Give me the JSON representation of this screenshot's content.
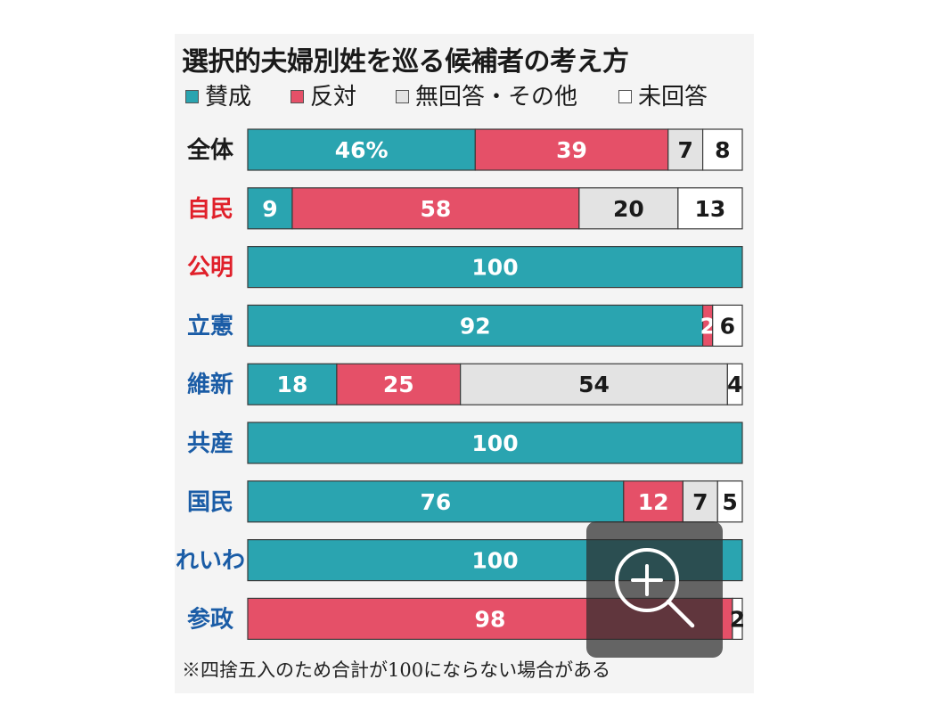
{
  "chart_data": {
    "type": "bar",
    "orientation": "horizontal",
    "stacked": true,
    "title": "選択的夫婦別姓を巡る候補者の考え方",
    "unit": "%",
    "xlim": [
      0,
      100
    ],
    "grid": false,
    "legend_position": "top",
    "categories": [
      "全体",
      "自民",
      "公明",
      "立憲",
      "維新",
      "共産",
      "国民",
      "れいわ",
      "参政"
    ],
    "category_colors": [
      "#1a1a1a",
      "#e0202a",
      "#e0202a",
      "#1a5ca6",
      "#1a5ca6",
      "#1a5ca6",
      "#1a5ca6",
      "#1a5ca6",
      "#1a5ca6"
    ],
    "value_labels": [
      [
        "46%",
        "39",
        "7",
        "8"
      ],
      [
        "9",
        "58",
        "20",
        "13"
      ],
      [
        "100",
        "",
        "",
        ""
      ],
      [
        "92",
        "2",
        "",
        "6"
      ],
      [
        "18",
        "25",
        "54",
        "4"
      ],
      [
        "100",
        "",
        "",
        ""
      ],
      [
        "76",
        "12",
        "7",
        "5"
      ],
      [
        "100",
        "",
        "",
        ""
      ],
      [
        "",
        "98",
        "",
        "2"
      ]
    ],
    "series": [
      {
        "name": "賛成",
        "color": "#2aa4b0",
        "values": [
          46,
          9,
          100,
          92,
          18,
          100,
          76,
          100,
          0
        ]
      },
      {
        "name": "反対",
        "color": "#e55068",
        "values": [
          39,
          58,
          0,
          2,
          25,
          0,
          12,
          0,
          98
        ]
      },
      {
        "name": "無回答・その他",
        "color": "#e3e3e3",
        "values": [
          7,
          20,
          0,
          0,
          54,
          0,
          7,
          0,
          0
        ]
      },
      {
        "name": "未回答",
        "color": "#ffffff",
        "values": [
          8,
          13,
          0,
          6,
          4,
          0,
          5,
          0,
          2
        ]
      }
    ],
    "footnote": "※四捨五入のため合計が100にならない場合がある"
  },
  "zoom": {
    "icon": "zoom-in-icon"
  }
}
